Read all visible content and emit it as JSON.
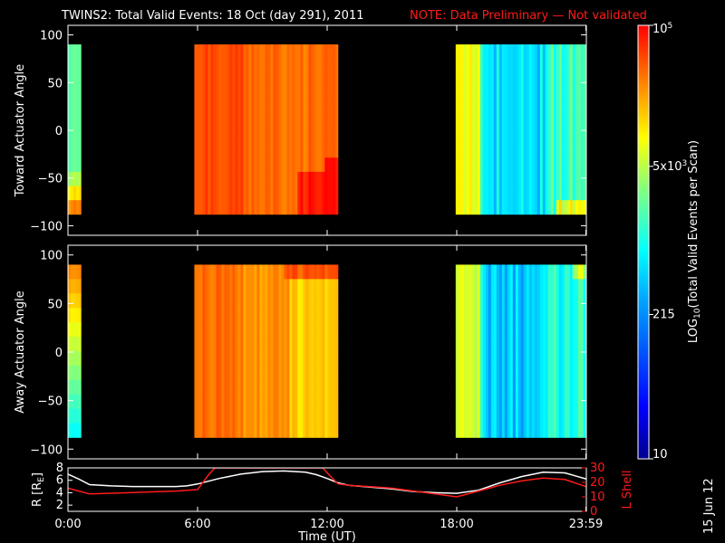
{
  "header": {
    "title": "TWINS2: Total Valid Events: 18 Oct (day 291), 2011",
    "note": "NOTE: Data Preliminary — Not validated"
  },
  "footer": {
    "stamp": "15 Jun 12"
  },
  "colors": {
    "note": "#ff1a1a",
    "r_line": "#ffffff",
    "lshell_line": "#ff1a1a",
    "background": "#000000"
  },
  "chart_data": [
    {
      "type": "heatmap",
      "title": "",
      "ylabel": "Toward Actuator Angle",
      "ylim": [
        -110,
        110
      ],
      "yticks": [
        "100",
        "50",
        "0",
        "−50",
        "−100"
      ],
      "ytick_values": [
        100,
        50,
        0,
        -50,
        -100
      ],
      "xlim_hours": [
        0,
        24
      ],
      "data_segments_hours": [
        [
          0.0,
          0.6
        ],
        [
          5.85,
          12.5
        ],
        [
          17.95,
          24.0
        ]
      ],
      "angle_range": [
        -88,
        90
      ],
      "description_log10": {
        "seg1": "mostly 3.2-3.6 (blue/cyan), rising to ~4.6 near -80",
        "seg2": "~4.5-4.8 (yellow/orange), up to ~4.95 near -80 at end",
        "seg3": "~2.6-3.4 (blue), ~4.0 near -80 at end"
      }
    },
    {
      "type": "heatmap",
      "title": "",
      "ylabel": "Away Actuator Angle",
      "ylim": [
        -110,
        110
      ],
      "yticks": [
        "100",
        "50",
        "0",
        "−50",
        "−100"
      ],
      "ytick_values": [
        100,
        50,
        0,
        -50,
        -100
      ],
      "xlim_hours": [
        0,
        24
      ],
      "data_segments_hours": [
        [
          0.0,
          0.6
        ],
        [
          5.85,
          12.5
        ],
        [
          17.95,
          24.0
        ]
      ],
      "angle_range": [
        -88,
        90
      ],
      "description_log10": {
        "seg1": "~4.3-4.6 near +90, decreasing to ~2.9 near -80",
        "seg2": "~4.3-4.8 (yellow/green)",
        "seg3": "~2.4-3.4 (dark blue)"
      }
    },
    {
      "type": "line",
      "title": "",
      "xlabel": "Time (UT)",
      "xticks": [
        "0:00",
        "6:00",
        "12:00",
        "18:00",
        "23:59"
      ],
      "xtick_values": [
        0,
        6,
        12,
        18,
        23.98
      ],
      "ylabel_left": "R [R",
      "ylabel_left_sub": "E",
      "ylabel_left_end": "]",
      "ylim_left": [
        1,
        8
      ],
      "yticks_left": [
        "8",
        "6",
        "4",
        "2"
      ],
      "ytick_values_left": [
        8,
        6,
        4,
        2
      ],
      "ylabel_right": "L Shell",
      "ylim_right": [
        0,
        30
      ],
      "yticks_right": [
        "30",
        "20",
        "10",
        "0"
      ],
      "ytick_values_right": [
        30,
        20,
        10,
        0
      ],
      "series": [
        {
          "axis": "left",
          "color": "#ffffff",
          "x": [
            0,
            0.5,
            1,
            2,
            3,
            4,
            5,
            5.5,
            6,
            7,
            8,
            9,
            10,
            11,
            11.5,
            12,
            12.5,
            13,
            14,
            15,
            16,
            17,
            18,
            19,
            20,
            21,
            22,
            23,
            24
          ],
          "y": [
            7.0,
            6.2,
            5.3,
            5.1,
            5.0,
            5.0,
            5.0,
            5.1,
            5.4,
            6.3,
            7.0,
            7.4,
            7.5,
            7.3,
            6.9,
            6.3,
            5.6,
            5.2,
            4.9,
            4.6,
            4.2,
            4.0,
            3.9,
            4.4,
            5.6,
            6.6,
            7.3,
            7.2,
            6.2
          ]
        },
        {
          "axis": "right",
          "color": "#ff1a1a",
          "x": [
            0,
            0.5,
            1,
            2,
            3,
            4,
            5,
            6,
            6.5,
            6.8,
            11.8,
            12.1,
            12.5,
            13,
            14,
            15,
            16,
            17,
            18,
            19,
            20,
            21,
            22,
            23,
            24
          ],
          "y": [
            16,
            14,
            12,
            12.5,
            13,
            13.5,
            14,
            15,
            25,
            30,
            30,
            25,
            19,
            18,
            17,
            16,
            14,
            12,
            10,
            14,
            18,
            21,
            23,
            22,
            17
          ]
        }
      ]
    }
  ],
  "colorbar": {
    "label_main": "LOG",
    "label_sub": "10",
    "label_rest": "(Total Valid  Events per Scan)",
    "ticks": [
      {
        "text": "10",
        "log10": 1.0
      },
      {
        "text": "215",
        "log10": 2.332
      },
      {
        "text": "5x10",
        "sup": "3",
        "log10": 3.699
      },
      {
        "text": "10",
        "sup": "5",
        "log10": 5.0
      }
    ],
    "range_log10": [
      1.0,
      5.0
    ]
  }
}
